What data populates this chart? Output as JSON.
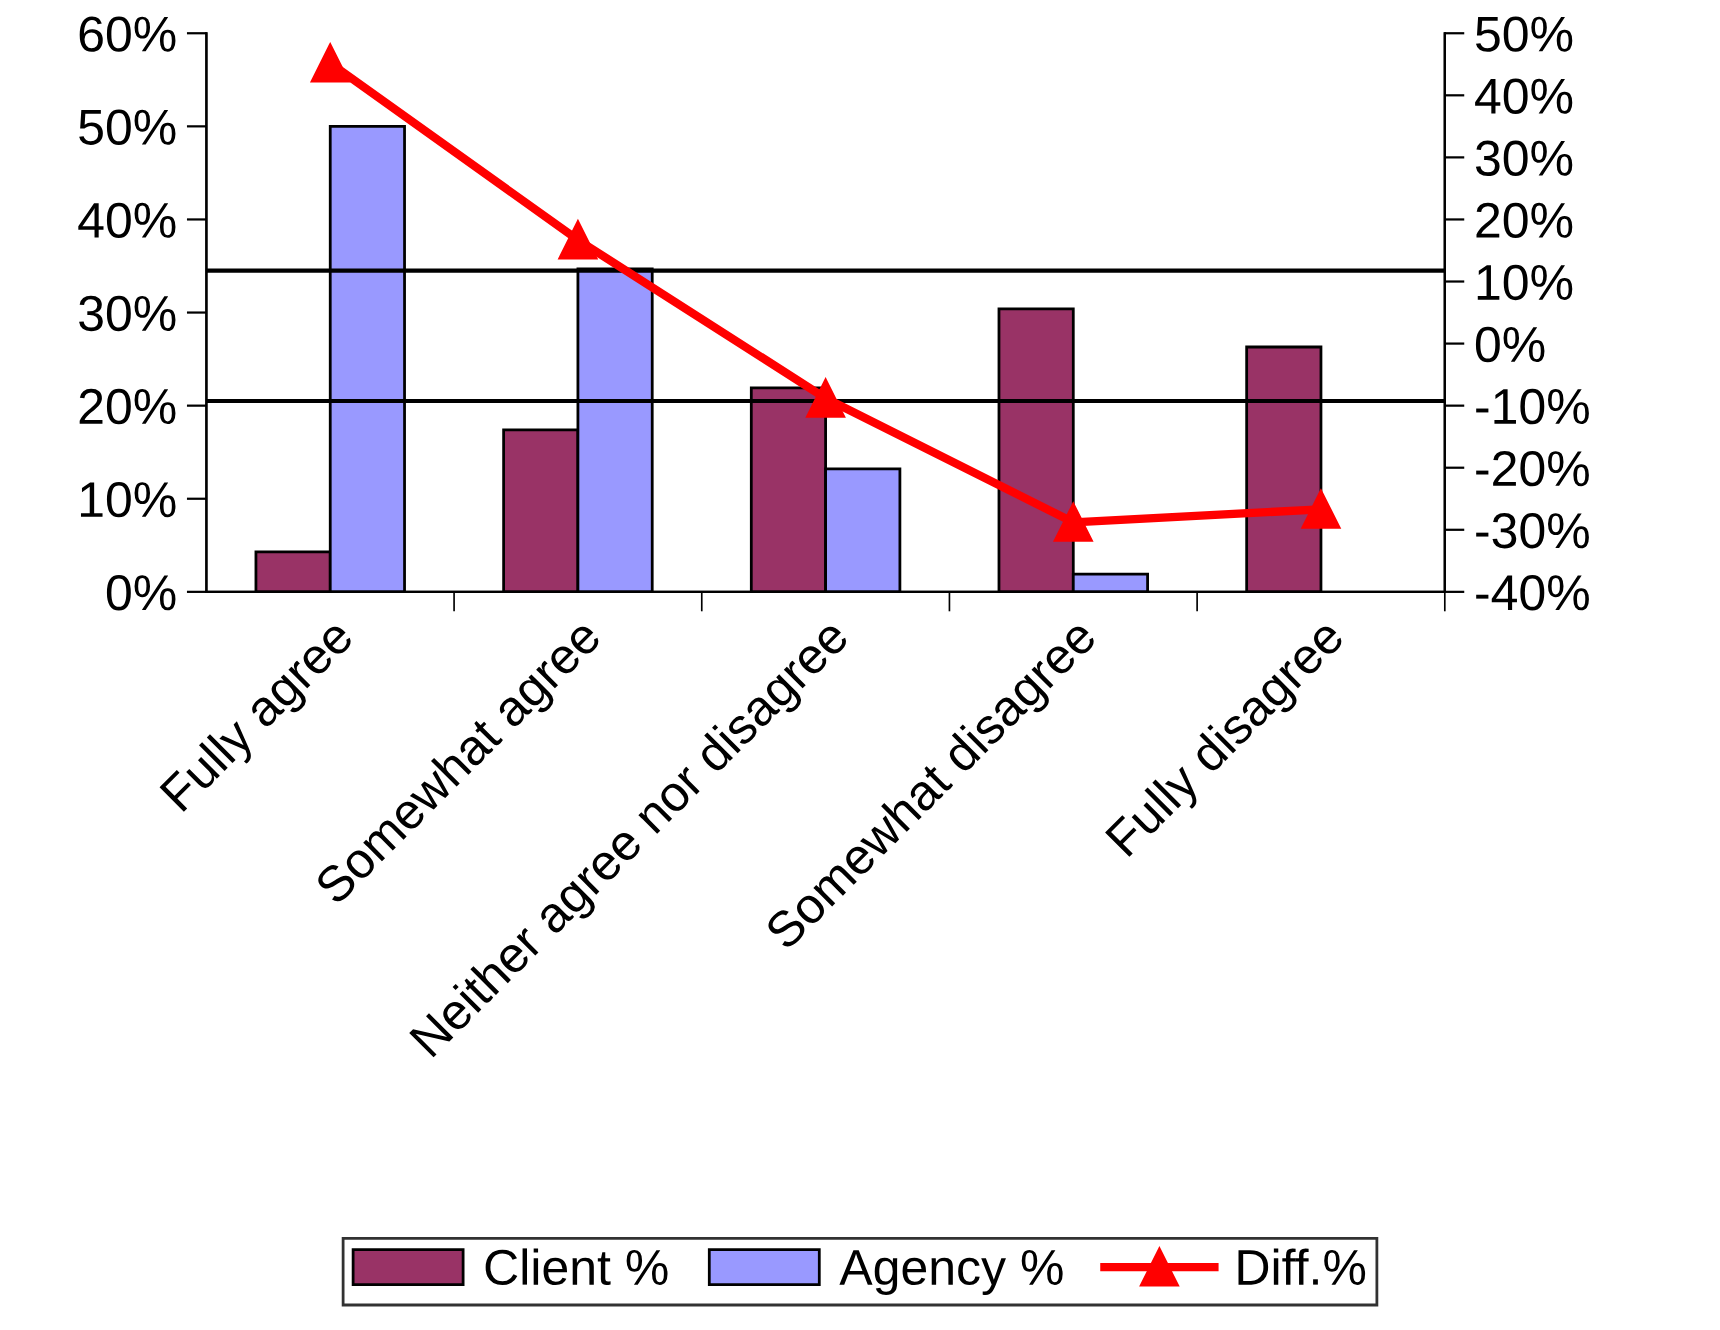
{
  "chart_data": {
    "type": "bar",
    "categories": [
      "Fully agree",
      "Somewhat agree",
      "Neither agree nor disagree",
      "Somewhat disagree",
      "Fully disagree"
    ],
    "series": [
      {
        "name": "Client %",
        "color": "#993366",
        "values": [
          4.3,
          17.4,
          21.9,
          30.4,
          26.3
        ]
      },
      {
        "name": "Agency %",
        "color": "#9999ff",
        "values": [
          50,
          34.7,
          13.2,
          1.9,
          null
        ]
      },
      {
        "name": "Diff.%",
        "color": "#ff0000",
        "type": "line",
        "axis": "y2",
        "marker": "triangle",
        "values": [
          45.2,
          16.7,
          -8.8,
          -28.8,
          -26.7
        ]
      }
    ],
    "ylim": [
      0,
      60
    ],
    "yticks": [
      {
        "value": 0,
        "label": "0%"
      },
      {
        "value": 10,
        "label": "10%"
      },
      {
        "value": 20,
        "label": "20%"
      },
      {
        "value": 30,
        "label": "30%"
      },
      {
        "value": 40,
        "label": "40%"
      },
      {
        "value": 50,
        "label": "50%"
      },
      {
        "value": 60,
        "label": "60%"
      }
    ],
    "y2lim": [
      -40,
      50
    ],
    "y2ticks": [
      {
        "value": -40,
        "label": "-40%"
      },
      {
        "value": -30,
        "label": "-30%"
      },
      {
        "value": -20,
        "label": "-20%"
      },
      {
        "value": -10,
        "label": "-10%"
      },
      {
        "value": 0,
        "label": "0%"
      },
      {
        "value": 10,
        "label": "10%"
      },
      {
        "value": 20,
        "label": "20%"
      },
      {
        "value": 30,
        "label": "30%"
      },
      {
        "value": 40,
        "label": "40%"
      },
      {
        "value": 50,
        "label": "50%"
      }
    ],
    "ref_lines": [
      {
        "axis": "y",
        "value": 34.5,
        "color": "#000000"
      },
      {
        "axis": "y",
        "value": 20.5,
        "color": "#000000"
      }
    ],
    "grid": false,
    "legend": "bottom"
  }
}
